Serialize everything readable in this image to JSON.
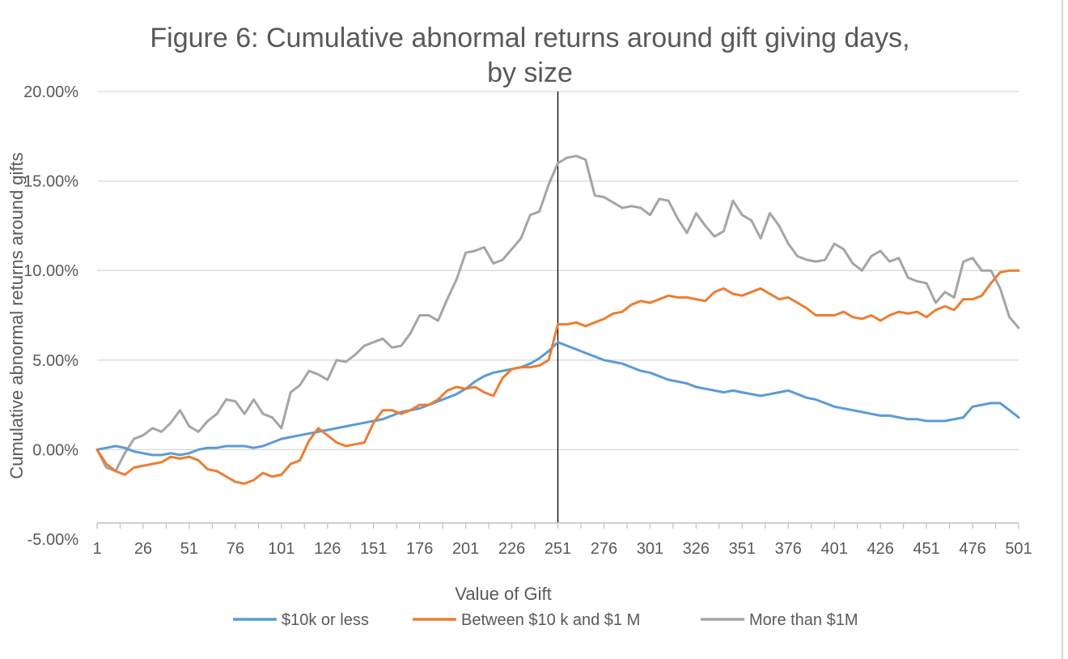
{
  "chart_data": {
    "type": "line",
    "title": "Figure 6:  Cumulative abnormal returns around gift giving days,",
    "title_line2": "by size",
    "xlabel": "Value of Gift",
    "ylabel": "Cumulative abnormal returns around gifts",
    "xlim": [
      1,
      501
    ],
    "ylim": [
      -0.05,
      0.2
    ],
    "x_ticks": [
      1,
      26,
      51,
      76,
      101,
      126,
      151,
      176,
      201,
      226,
      251,
      276,
      301,
      326,
      351,
      376,
      401,
      426,
      451,
      476,
      501
    ],
    "x_tick_labels": [
      "1",
      "26",
      "51",
      "76",
      "101",
      "126",
      "151",
      "176",
      "201",
      "226",
      "251",
      "276",
      "301",
      "326",
      "351",
      "376",
      "401",
      "426",
      "451",
      "476",
      "501"
    ],
    "y_ticks": [
      -0.05,
      0.0,
      0.05,
      0.1,
      0.15,
      0.2
    ],
    "y_tick_labels": [
      "-5.00%",
      "0.00%",
      "5.00%",
      "10.00%",
      "15.00%",
      "20.00%"
    ],
    "grid": true,
    "legend_position": "bottom",
    "event_line_x": 251,
    "colors": {
      "text": "#595959",
      "grid": "#d9d9d9",
      "axis": "#bfbfbf",
      "event_line": "#000000"
    },
    "series": [
      {
        "name": "$10k or less",
        "color": "#5b9bd5",
        "x": [
          1,
          6,
          11,
          16,
          21,
          26,
          31,
          36,
          41,
          46,
          51,
          56,
          61,
          66,
          71,
          76,
          81,
          86,
          91,
          96,
          101,
          106,
          111,
          116,
          121,
          126,
          131,
          136,
          141,
          146,
          151,
          156,
          161,
          166,
          171,
          176,
          181,
          186,
          191,
          196,
          201,
          206,
          211,
          216,
          221,
          226,
          231,
          236,
          241,
          246,
          251,
          256,
          261,
          266,
          271,
          276,
          281,
          286,
          291,
          296,
          301,
          306,
          311,
          316,
          321,
          326,
          331,
          336,
          341,
          346,
          351,
          356,
          361,
          366,
          371,
          376,
          381,
          386,
          391,
          396,
          401,
          406,
          411,
          416,
          421,
          426,
          431,
          436,
          441,
          446,
          451,
          456,
          461,
          466,
          471,
          476,
          481,
          486,
          491,
          496,
          501
        ],
        "y": [
          0.0,
          0.001,
          0.002,
          0.001,
          -0.001,
          -0.002,
          -0.003,
          -0.003,
          -0.002,
          -0.003,
          -0.002,
          0.0,
          0.001,
          0.001,
          0.002,
          0.002,
          0.002,
          0.001,
          0.002,
          0.004,
          0.006,
          0.007,
          0.008,
          0.009,
          0.01,
          0.011,
          0.012,
          0.013,
          0.014,
          0.015,
          0.016,
          0.017,
          0.019,
          0.021,
          0.022,
          0.023,
          0.025,
          0.027,
          0.029,
          0.031,
          0.034,
          0.038,
          0.041,
          0.043,
          0.044,
          0.045,
          0.046,
          0.048,
          0.051,
          0.055,
          0.06,
          0.058,
          0.056,
          0.054,
          0.052,
          0.05,
          0.049,
          0.048,
          0.046,
          0.044,
          0.043,
          0.041,
          0.039,
          0.038,
          0.037,
          0.035,
          0.034,
          0.033,
          0.032,
          0.033,
          0.032,
          0.031,
          0.03,
          0.031,
          0.032,
          0.033,
          0.031,
          0.029,
          0.028,
          0.026,
          0.024,
          0.023,
          0.022,
          0.021,
          0.02,
          0.019,
          0.019,
          0.018,
          0.017,
          0.017,
          0.016,
          0.016,
          0.016,
          0.017,
          0.018,
          0.024,
          0.025,
          0.026,
          0.026,
          0.022,
          0.018
        ]
      },
      {
        "name": "Between $10 k and $1 M",
        "color": "#ed7d31",
        "x": [
          1,
          6,
          11,
          16,
          21,
          26,
          31,
          36,
          41,
          46,
          51,
          56,
          61,
          66,
          71,
          76,
          81,
          86,
          91,
          96,
          101,
          106,
          111,
          116,
          121,
          126,
          131,
          136,
          141,
          146,
          151,
          156,
          161,
          166,
          171,
          176,
          181,
          186,
          191,
          196,
          201,
          206,
          211,
          216,
          221,
          226,
          231,
          236,
          241,
          246,
          251,
          256,
          261,
          266,
          271,
          276,
          281,
          286,
          291,
          296,
          301,
          306,
          311,
          316,
          321,
          326,
          331,
          336,
          341,
          346,
          351,
          356,
          361,
          366,
          371,
          376,
          381,
          386,
          391,
          396,
          401,
          406,
          411,
          416,
          421,
          426,
          431,
          436,
          441,
          446,
          451,
          456,
          461,
          466,
          471,
          476,
          481,
          486,
          491,
          496,
          501
        ],
        "y": [
          0.0,
          -0.008,
          -0.012,
          -0.014,
          -0.01,
          -0.009,
          -0.008,
          -0.007,
          -0.004,
          -0.005,
          -0.004,
          -0.006,
          -0.011,
          -0.012,
          -0.015,
          -0.018,
          -0.019,
          -0.017,
          -0.013,
          -0.015,
          -0.014,
          -0.008,
          -0.006,
          0.005,
          0.012,
          0.008,
          0.004,
          0.002,
          0.003,
          0.004,
          0.015,
          0.022,
          0.022,
          0.02,
          0.022,
          0.025,
          0.025,
          0.028,
          0.033,
          0.035,
          0.034,
          0.035,
          0.032,
          0.03,
          0.04,
          0.045,
          0.046,
          0.046,
          0.047,
          0.05,
          0.07,
          0.07,
          0.071,
          0.069,
          0.071,
          0.073,
          0.076,
          0.077,
          0.081,
          0.083,
          0.082,
          0.084,
          0.086,
          0.085,
          0.085,
          0.084,
          0.083,
          0.088,
          0.09,
          0.087,
          0.086,
          0.088,
          0.09,
          0.087,
          0.084,
          0.085,
          0.082,
          0.079,
          0.075,
          0.075,
          0.075,
          0.077,
          0.074,
          0.073,
          0.075,
          0.072,
          0.075,
          0.077,
          0.076,
          0.077,
          0.074,
          0.078,
          0.08,
          0.078,
          0.084,
          0.084,
          0.086,
          0.093,
          0.099,
          0.1,
          0.1
        ]
      },
      {
        "name": "More than $1M",
        "color": "#a5a5a5",
        "x": [
          1,
          6,
          11,
          16,
          21,
          26,
          31,
          36,
          41,
          46,
          51,
          56,
          61,
          66,
          71,
          76,
          81,
          86,
          91,
          96,
          101,
          106,
          111,
          116,
          121,
          126,
          131,
          136,
          141,
          146,
          151,
          156,
          161,
          166,
          171,
          176,
          181,
          186,
          191,
          196,
          201,
          206,
          211,
          216,
          221,
          226,
          231,
          236,
          241,
          246,
          251,
          256,
          261,
          266,
          271,
          276,
          281,
          286,
          291,
          296,
          301,
          306,
          311,
          316,
          321,
          326,
          331,
          336,
          341,
          346,
          351,
          356,
          361,
          366,
          371,
          376,
          381,
          386,
          391,
          396,
          401,
          406,
          411,
          416,
          421,
          426,
          431,
          436,
          441,
          446,
          451,
          456,
          461,
          466,
          471,
          476,
          481,
          486,
          491,
          496,
          501
        ],
        "y": [
          0.0,
          -0.01,
          -0.012,
          -0.002,
          0.006,
          0.008,
          0.012,
          0.01,
          0.015,
          0.022,
          0.013,
          0.01,
          0.016,
          0.02,
          0.028,
          0.027,
          0.02,
          0.028,
          0.02,
          0.018,
          0.012,
          0.032,
          0.036,
          0.044,
          0.042,
          0.039,
          0.05,
          0.049,
          0.053,
          0.058,
          0.06,
          0.062,
          0.057,
          0.058,
          0.065,
          0.075,
          0.075,
          0.072,
          0.084,
          0.095,
          0.11,
          0.111,
          0.113,
          0.104,
          0.106,
          0.112,
          0.118,
          0.131,
          0.133,
          0.148,
          0.16,
          0.163,
          0.164,
          0.162,
          0.142,
          0.141,
          0.138,
          0.135,
          0.136,
          0.135,
          0.131,
          0.14,
          0.139,
          0.129,
          0.121,
          0.132,
          0.125,
          0.119,
          0.122,
          0.139,
          0.131,
          0.128,
          0.118,
          0.132,
          0.125,
          0.115,
          0.108,
          0.106,
          0.105,
          0.106,
          0.115,
          0.112,
          0.104,
          0.1,
          0.108,
          0.111,
          0.105,
          0.107,
          0.096,
          0.094,
          0.093,
          0.082,
          0.088,
          0.085,
          0.105,
          0.107,
          0.1,
          0.1,
          0.09,
          0.074,
          0.068
        ]
      }
    ]
  }
}
